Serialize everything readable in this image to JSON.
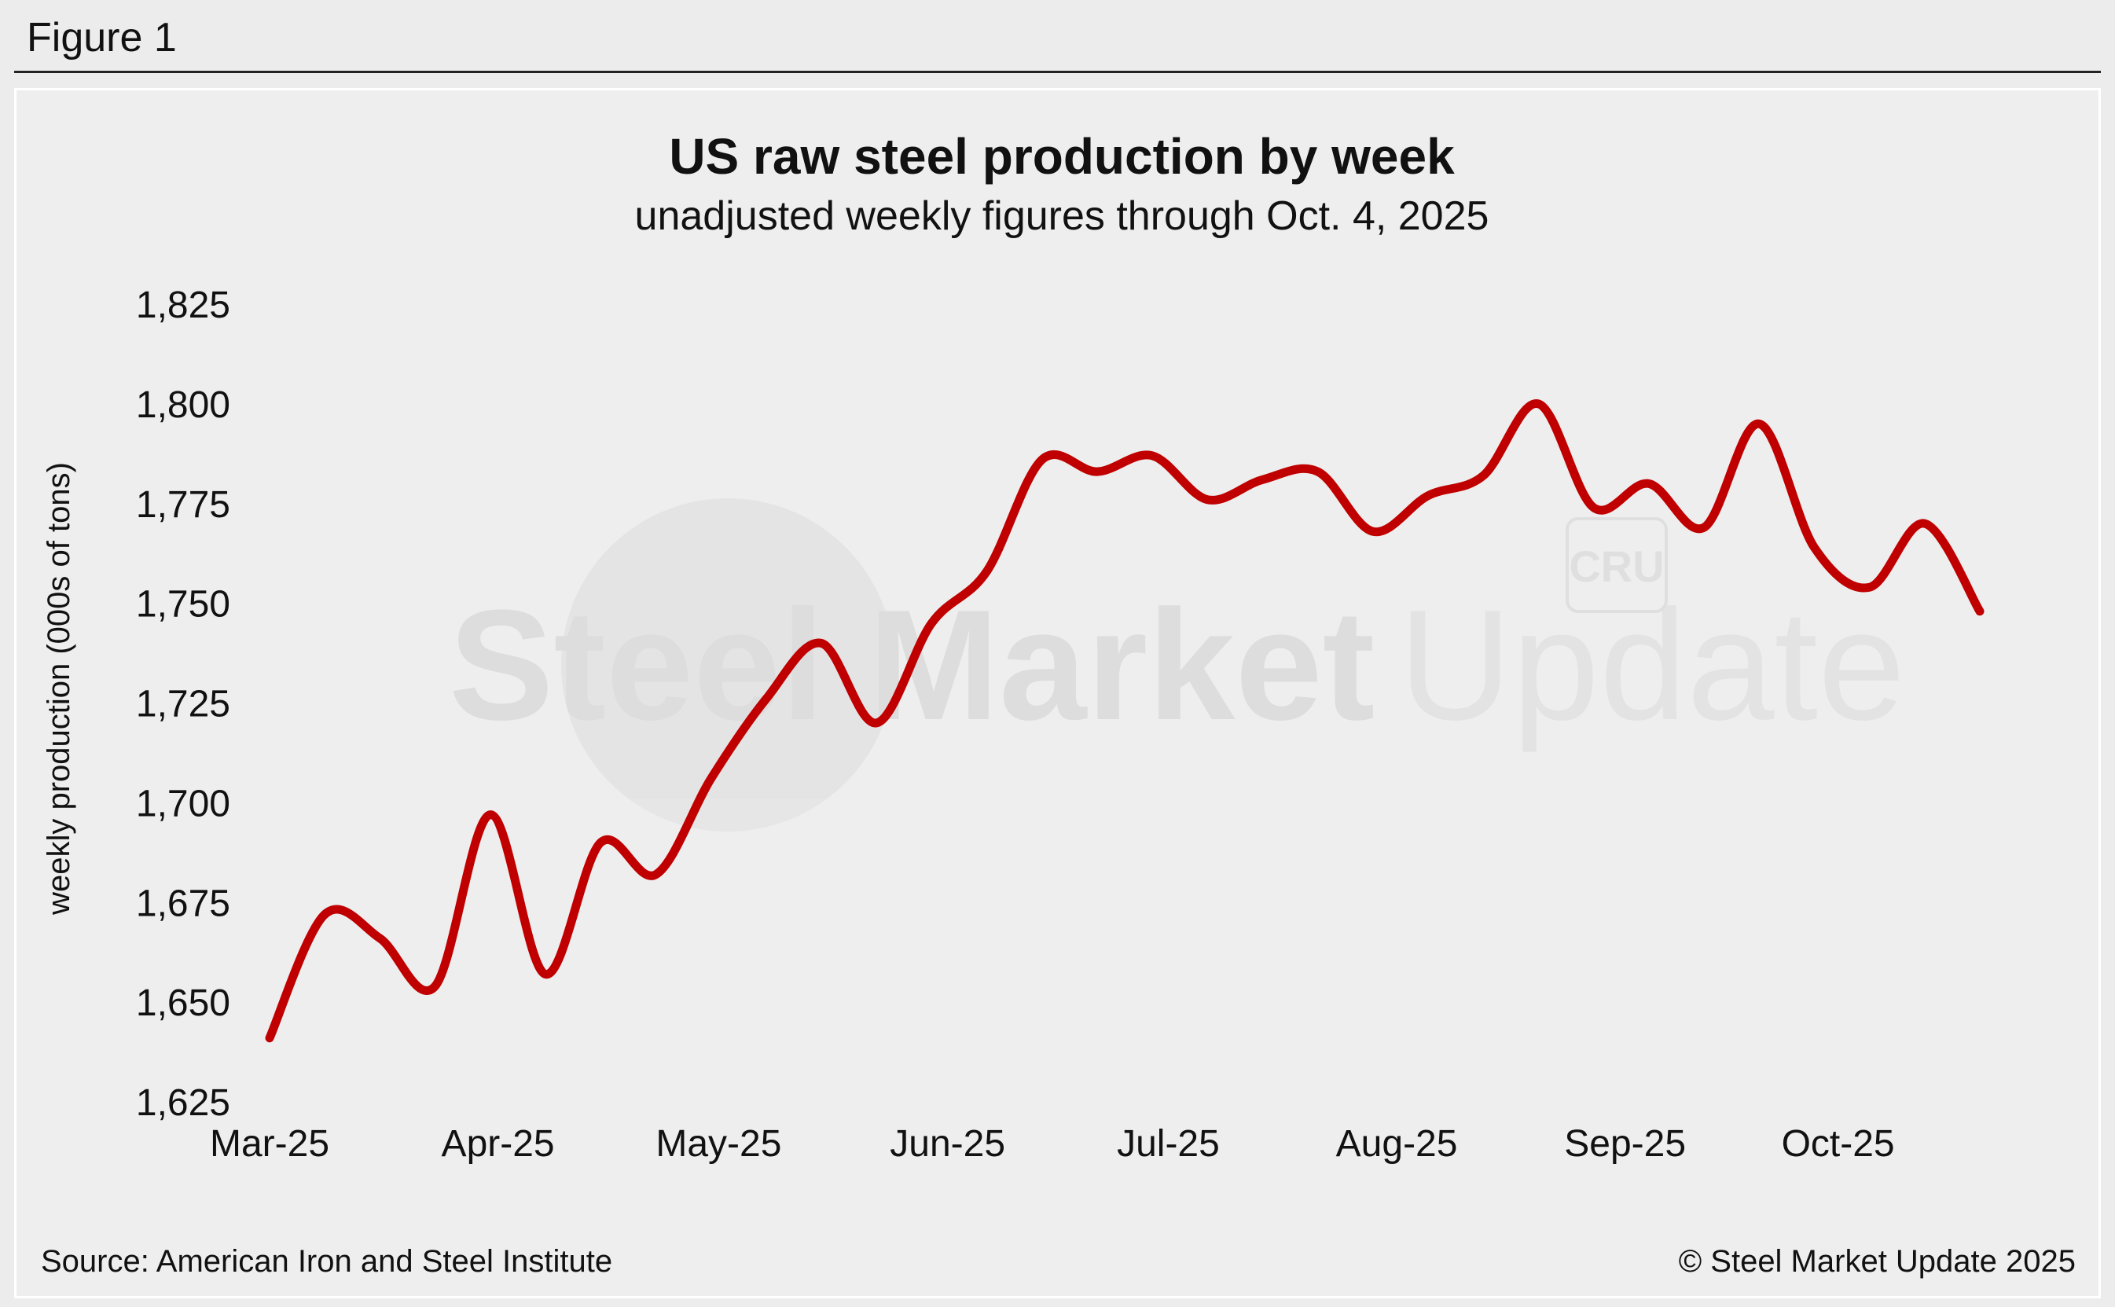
{
  "figure": {
    "label": "Figure 1"
  },
  "chart_data": {
    "type": "line",
    "title": "US raw steel production by week",
    "subtitle": "unadjusted weekly figures through Oct. 4, 2025",
    "xlabel": "",
    "ylabel": "weekly production (000s of tons)",
    "ylim": [
      1625,
      1825
    ],
    "yticks": [
      "1,825",
      "1,800",
      "1,775",
      "1,750",
      "1,725",
      "1,700",
      "1,675",
      "1,650",
      "1,625"
    ],
    "ytick_values": [
      1825,
      1800,
      1775,
      1750,
      1725,
      1700,
      1675,
      1650,
      1625
    ],
    "xticks": [
      "Mar-25",
      "Apr-25",
      "May-25",
      "Jun-25",
      "Jul-25",
      "Aug-25",
      "Sep-25",
      "Oct-25"
    ],
    "xlim": [
      0,
      31
    ],
    "xtick_positions": [
      0,
      4.14,
      8.14,
      12.29,
      16.29,
      20.43,
      24.57,
      28.43
    ],
    "series": [
      {
        "name": "Weekly raw steel production",
        "color": "#c00000",
        "x": [
          0,
          1,
          2,
          3,
          4,
          5,
          6,
          7,
          8,
          9,
          10,
          11,
          12,
          13,
          14,
          15,
          16,
          17,
          18,
          19,
          20,
          21,
          22,
          23,
          24,
          25,
          26,
          27,
          28,
          29,
          30,
          31
        ],
        "values": [
          1641,
          1672,
          1666,
          1654,
          1697,
          1657,
          1690,
          1682,
          1706,
          1726,
          1740,
          1720,
          1745,
          1758,
          1786,
          1783,
          1787,
          1776,
          1781,
          1783,
          1768,
          1777,
          1782,
          1800,
          1774,
          1780,
          1769,
          1795,
          1764,
          1754,
          1770,
          1748
        ]
      }
    ],
    "watermark": {
      "brand_bold": "Steel Market",
      "brand_light": "Update",
      "badge": "CRU"
    }
  },
  "footer": {
    "source": "Source: American Iron and Steel Institute",
    "copyright": "© Steel Market Update 2025"
  }
}
